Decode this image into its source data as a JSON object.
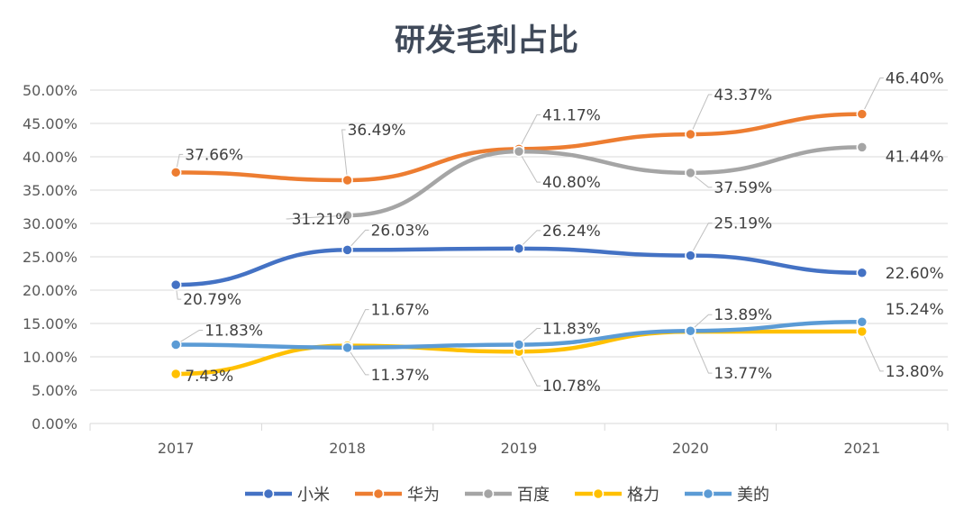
{
  "chart_data": {
    "type": "line",
    "title": "研发毛利占比",
    "categories": [
      "2017",
      "2018",
      "2019",
      "2020",
      "2021"
    ],
    "ylim": [
      0,
      50
    ],
    "yticks": [
      "0.00%",
      "5.00%",
      "10.00%",
      "15.00%",
      "20.00%",
      "25.00%",
      "30.00%",
      "35.00%",
      "40.00%",
      "45.00%",
      "50.00%"
    ],
    "grid": true,
    "legend_position": "bottom",
    "series": [
      {
        "name": "小米",
        "color": "#4472c4",
        "values": [
          20.79,
          26.03,
          26.24,
          25.19,
          22.6
        ],
        "labels": [
          "20.79%",
          "26.03%",
          "26.24%",
          "25.19%",
          "22.60%"
        ]
      },
      {
        "name": "华为",
        "color": "#ed7d31",
        "values": [
          37.66,
          36.49,
          41.17,
          43.37,
          46.4
        ],
        "labels": [
          "37.66%",
          "36.49%",
          "41.17%",
          "43.37%",
          "46.40%"
        ]
      },
      {
        "name": "百度",
        "color": "#a5a5a5",
        "values": [
          null,
          31.21,
          40.8,
          37.59,
          41.44
        ],
        "labels": [
          null,
          "31.21%",
          "40.80%",
          "37.59%",
          "41.44%"
        ]
      },
      {
        "name": "格力",
        "color": "#ffc000",
        "values": [
          7.43,
          11.67,
          10.78,
          13.77,
          13.8
        ],
        "labels": [
          "7.43%",
          "11.67%",
          "10.78%",
          "13.77%",
          "13.80%"
        ]
      },
      {
        "name": "美的",
        "color": "#5b9bd5",
        "values": [
          11.83,
          11.37,
          11.83,
          13.89,
          15.24
        ],
        "labels": [
          "11.83%",
          "11.37%",
          "11.83%",
          "13.89%",
          "15.24%"
        ]
      }
    ]
  }
}
